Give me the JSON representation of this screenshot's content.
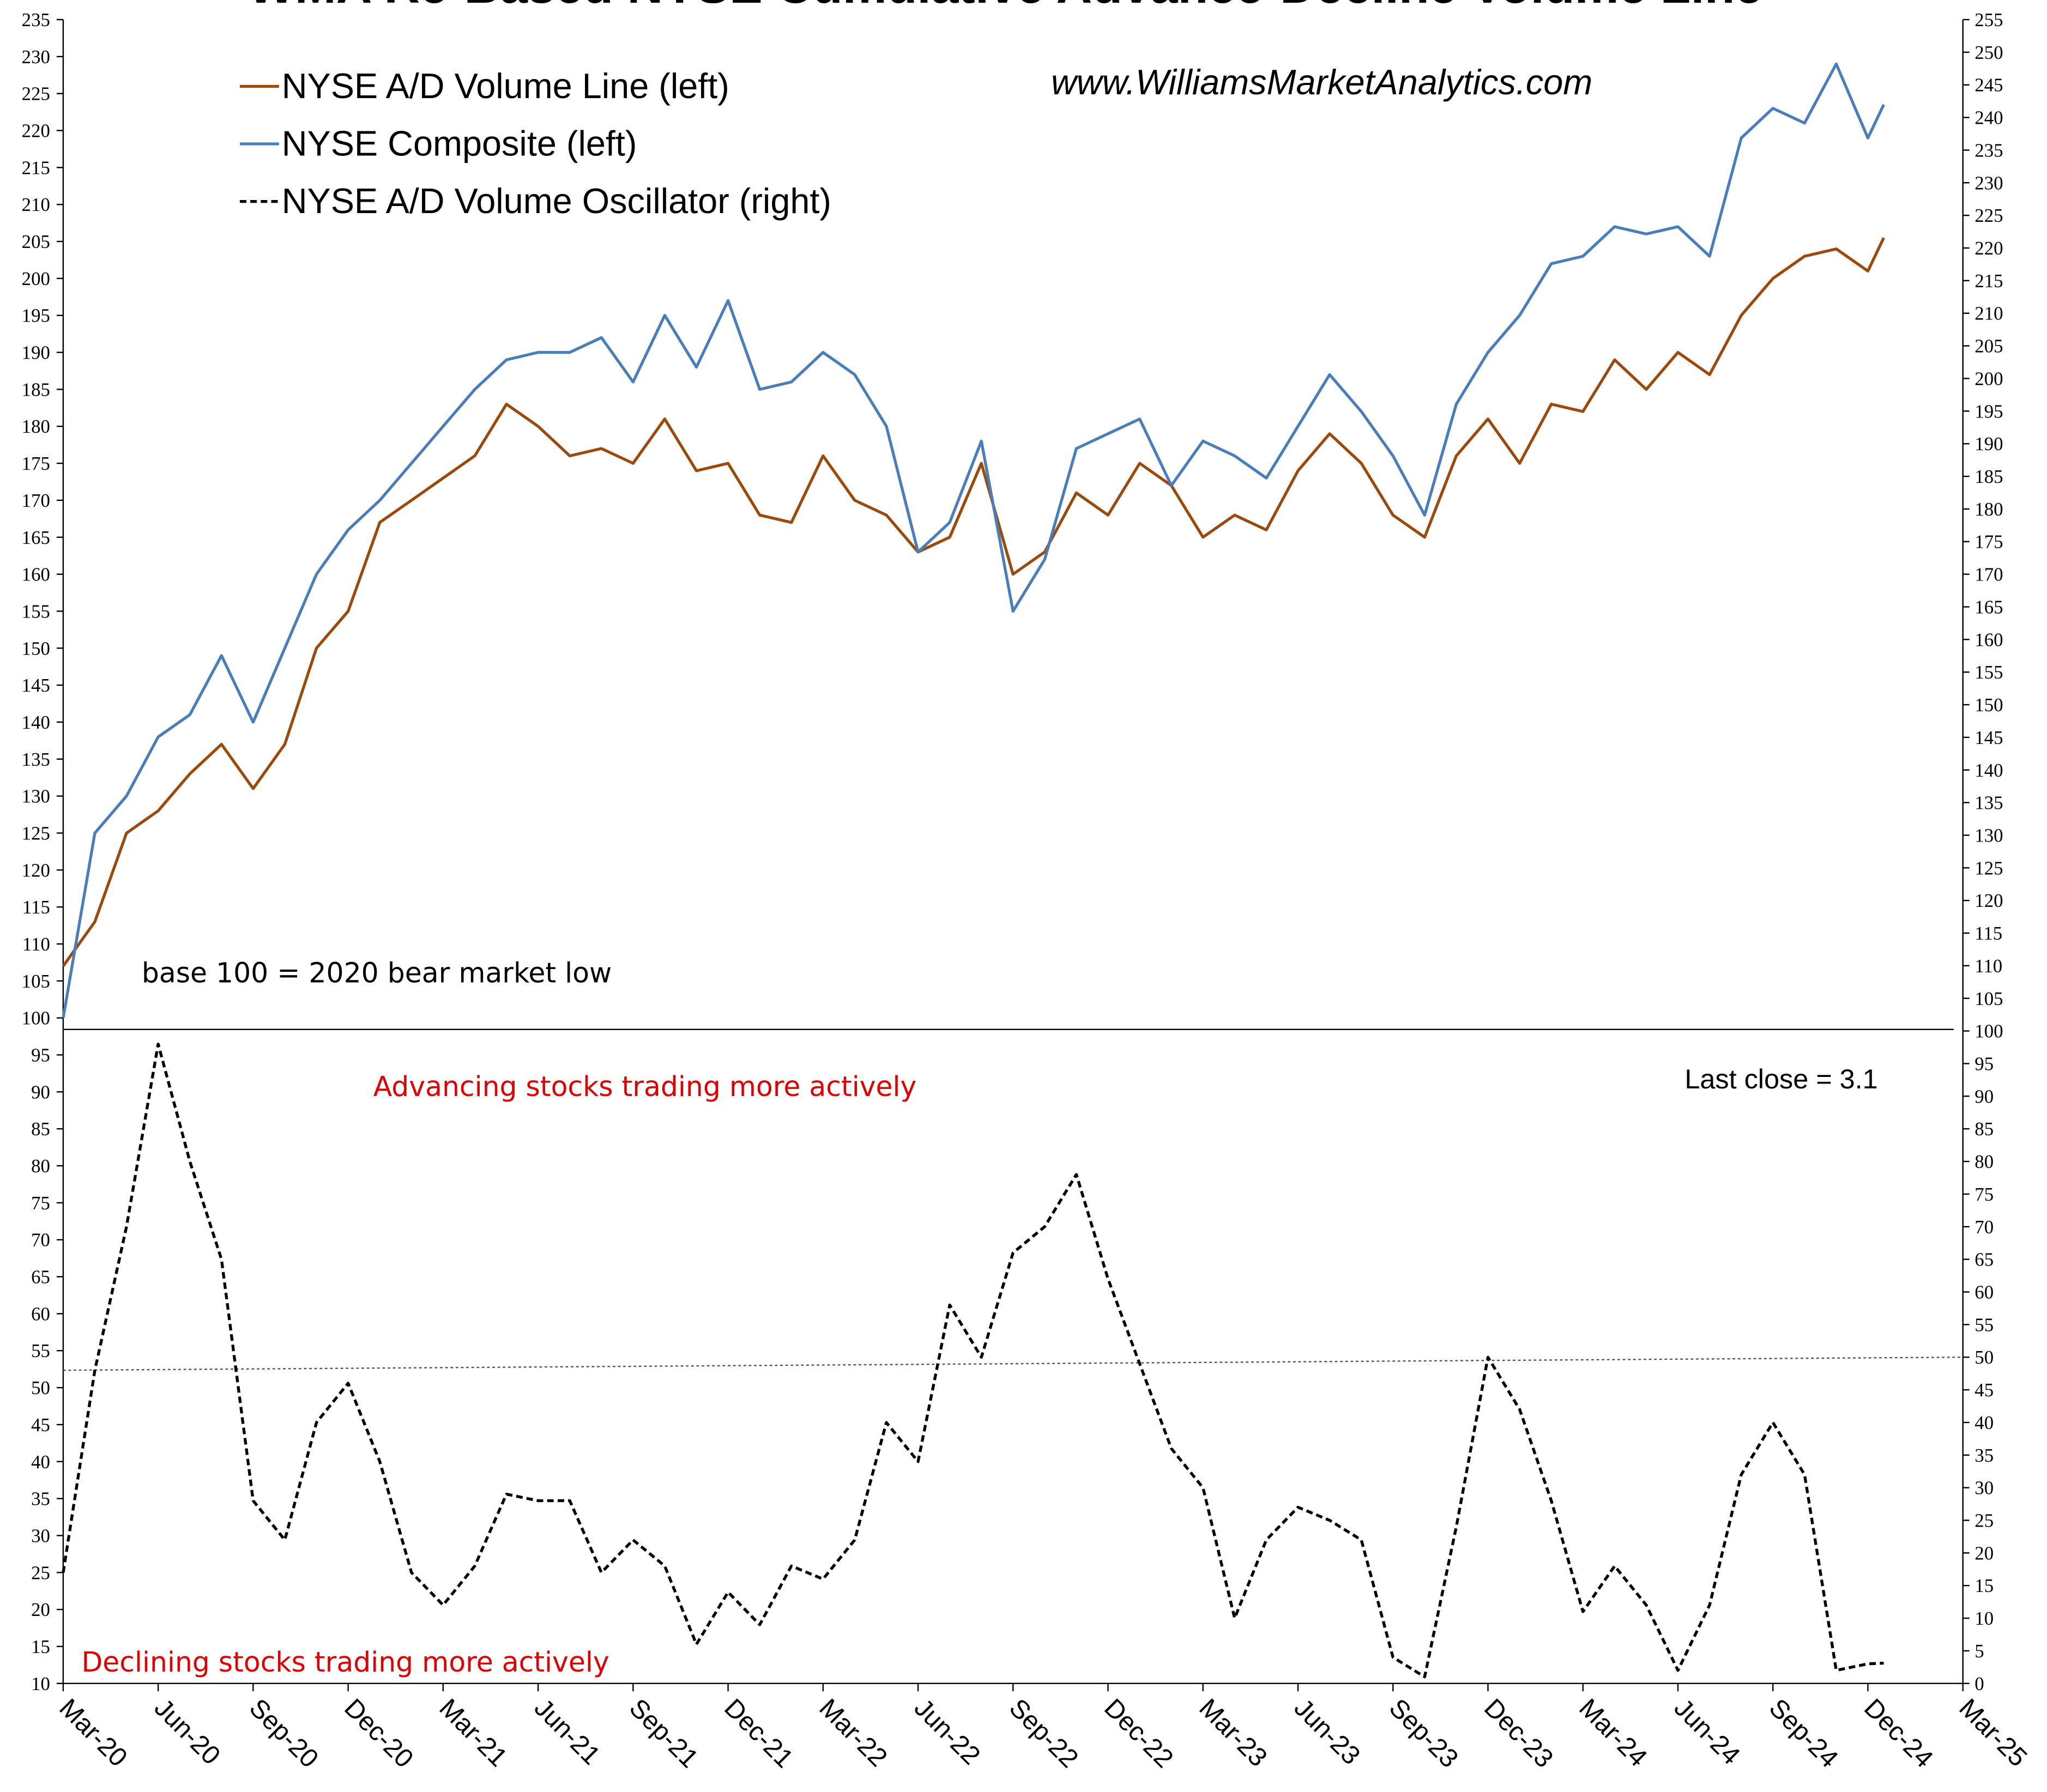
{
  "chart_data": {
    "type": "line",
    "title": "WMA Re-Based NYSE Cumulative Advance-Decline Volume Line",
    "watermark": "www.WilliamsMarketAnalytics.com",
    "note": "base 100 = 2020 bear market low",
    "upper_label": "Advancing stocks trading more actively",
    "lower_label": "Declining stocks trading more actively",
    "last_close_label": "Last close =  3.1",
    "legend": "upper left",
    "x": [
      0,
      1,
      2,
      3,
      4,
      5,
      6,
      7,
      8,
      9,
      10,
      11,
      12,
      13,
      14,
      15,
      16,
      17,
      18,
      19,
      20,
      21,
      22,
      23,
      24,
      25,
      26,
      27,
      28,
      29,
      30,
      31,
      32,
      33,
      34,
      35,
      36,
      37,
      38,
      39,
      40,
      41,
      42,
      43,
      44,
      45,
      46,
      47,
      48,
      49,
      50,
      51,
      52,
      53,
      54,
      55,
      56,
      57,
      57.5
    ],
    "xlim": [
      0,
      60
    ],
    "xticks": [
      {
        "value": 0,
        "label": "Mar-20"
      },
      {
        "value": 3,
        "label": "Jun-20"
      },
      {
        "value": 6,
        "label": "Sep-20"
      },
      {
        "value": 9,
        "label": "Dec-20"
      },
      {
        "value": 12,
        "label": "Mar-21"
      },
      {
        "value": 15,
        "label": "Jun-21"
      },
      {
        "value": 18,
        "label": "Sep-21"
      },
      {
        "value": 21,
        "label": "Dec-21"
      },
      {
        "value": 24,
        "label": "Mar-22"
      },
      {
        "value": 27,
        "label": "Jun-22"
      },
      {
        "value": 30,
        "label": "Sep-22"
      },
      {
        "value": 33,
        "label": "Dec-22"
      },
      {
        "value": 36,
        "label": "Mar-23"
      },
      {
        "value": 39,
        "label": "Jun-23"
      },
      {
        "value": 42,
        "label": "Sep-23"
      },
      {
        "value": 45,
        "label": "Dec-23"
      },
      {
        "value": 48,
        "label": "Mar-24"
      },
      {
        "value": 51,
        "label": "Jun-24"
      },
      {
        "value": 54,
        "label": "Sep-24"
      },
      {
        "value": 57,
        "label": "Dec-24"
      },
      {
        "value": 60,
        "label": "Mar-25"
      }
    ],
    "ylim": [
      10,
      235
    ],
    "yticks": [
      10,
      15,
      20,
      25,
      30,
      35,
      40,
      45,
      50,
      55,
      60,
      65,
      70,
      75,
      80,
      85,
      90,
      95,
      100,
      105,
      110,
      115,
      120,
      125,
      130,
      135,
      140,
      145,
      150,
      155,
      160,
      165,
      170,
      175,
      180,
      185,
      190,
      195,
      200,
      205,
      210,
      215,
      220,
      225,
      230,
      235
    ],
    "y2lim": [
      0,
      255
    ],
    "y2ticks": [
      0,
      5,
      10,
      15,
      20,
      25,
      30,
      35,
      40,
      45,
      50,
      55,
      60,
      65,
      70,
      75,
      80,
      85,
      90,
      95,
      100,
      105,
      110,
      115,
      120,
      125,
      130,
      135,
      140,
      145,
      150,
      155,
      160,
      165,
      170,
      175,
      180,
      185,
      190,
      195,
      200,
      205,
      210,
      215,
      220,
      225,
      230,
      235,
      240,
      245,
      250,
      255
    ],
    "reference_line": {
      "axis": "y2",
      "from": 48,
      "to": 50,
      "color": "#555555"
    },
    "series": [
      {
        "name": "NYSE A/D Volume Line (left)",
        "color": "#9c4a0b",
        "dash": false,
        "values": [
          107,
          113,
          125,
          128,
          133,
          137,
          131,
          137,
          150,
          155,
          167,
          170,
          173,
          176,
          183,
          180,
          176,
          177,
          175,
          181,
          174,
          175,
          168,
          167,
          176,
          170,
          168,
          163,
          165,
          175,
          160,
          163,
          171,
          168,
          175,
          172,
          165,
          168,
          166,
          174,
          179,
          175,
          168,
          165,
          176,
          181,
          175,
          183,
          182,
          189,
          185,
          190,
          187,
          195,
          200,
          203,
          204,
          201,
          205.5
        ]
      },
      {
        "name": "NYSE Composite (left)",
        "color": "#4a7ebb",
        "dash": false,
        "values": [
          100,
          125,
          130,
          138,
          141,
          149,
          140,
          150,
          160,
          166,
          170,
          175,
          180,
          185,
          189,
          190,
          190,
          192,
          186,
          195,
          188,
          197,
          185,
          186,
          190,
          187,
          180,
          163,
          167,
          178,
          155,
          162,
          177,
          179,
          181,
          172,
          178,
          176,
          173,
          180,
          187,
          182,
          176,
          168,
          183,
          190,
          195,
          202,
          203,
          207,
          206,
          207,
          203,
          219,
          223,
          221,
          229,
          219,
          223.5
        ]
      },
      {
        "name": "NYSE A/D Volume Oscillator (right)",
        "color": "#000000",
        "dash": true,
        "axis": "y2",
        "values": [
          17,
          48,
          70,
          98,
          80,
          65,
          28,
          22,
          40,
          46,
          34,
          17,
          12,
          18,
          29,
          28,
          28,
          17,
          22,
          18,
          6,
          14,
          9,
          18,
          16,
          22,
          40,
          34,
          58,
          50,
          66,
          70,
          78,
          62,
          49,
          36,
          30,
          10,
          22,
          27,
          25,
          22,
          4,
          1,
          24,
          50,
          42,
          28,
          11,
          18,
          12,
          2,
          12,
          32,
          40,
          32,
          2,
          3,
          3.1
        ]
      }
    ]
  }
}
